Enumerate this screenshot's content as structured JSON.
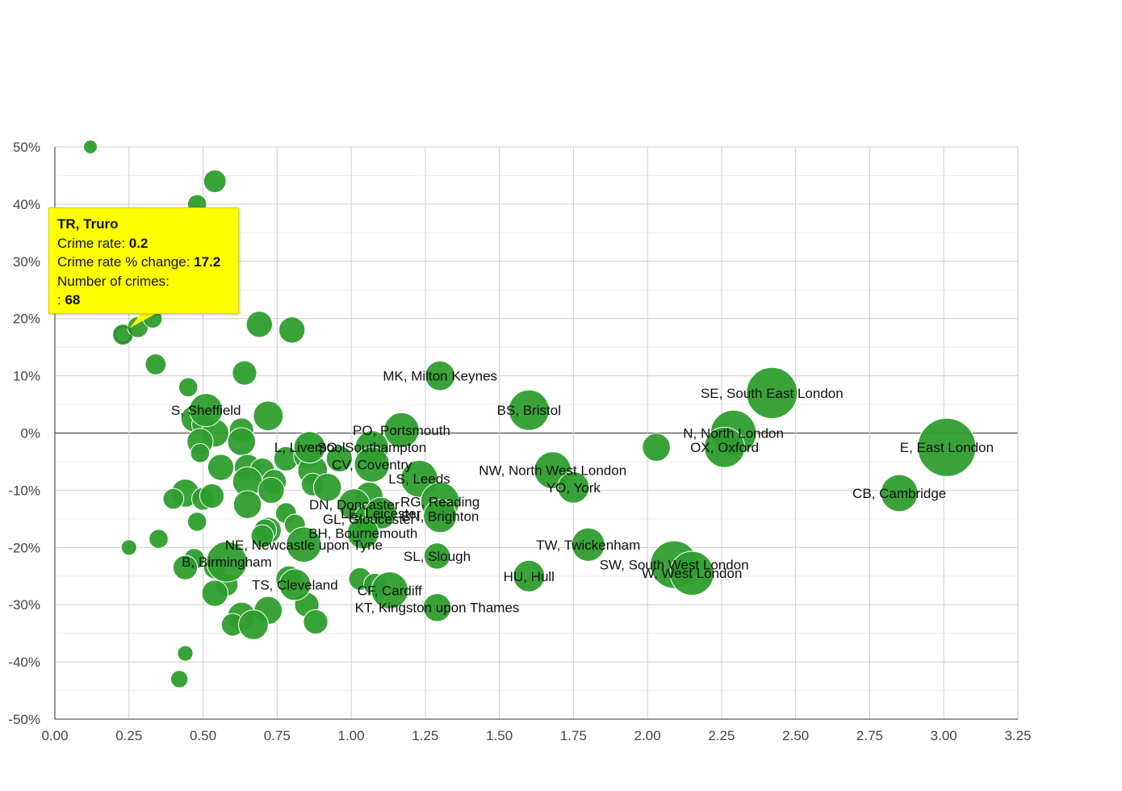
{
  "chart_data": {
    "type": "scatter",
    "title": "",
    "xlabel": "",
    "ylabel": "",
    "xlim": [
      0,
      3.25
    ],
    "ylim": [
      -50,
      50
    ],
    "x_ticks": [
      "0.00",
      "0.25",
      "0.50",
      "0.75",
      "1.00",
      "1.25",
      "1.50",
      "1.75",
      "2.00",
      "2.25",
      "2.50",
      "2.75",
      "3.00",
      "3.25"
    ],
    "y_ticks": [
      "50%",
      "40%",
      "30%",
      "20%",
      "10%",
      "0%",
      "-10%",
      "-20%",
      "-30%",
      "-40%",
      "-50%"
    ],
    "grid": true,
    "bubble_color": "#2e9e2e",
    "labeled_points": [
      {
        "label": "E, East London",
        "x": 3.01,
        "y": -2.5,
        "size": 3.0
      },
      {
        "label": "SE, South East London",
        "x": 2.42,
        "y": 7,
        "size": 2.6
      },
      {
        "label": "N, North London",
        "x": 2.29,
        "y": 0,
        "size": 2.3
      },
      {
        "label": "OX, Oxford",
        "x": 2.26,
        "y": -2.5,
        "size": 2.0
      },
      {
        "label": "CB, Cambridge",
        "x": 2.85,
        "y": -10.5,
        "size": 1.8
      },
      {
        "label": "SW, South West London",
        "x": 2.09,
        "y": -23,
        "size": 2.4
      },
      {
        "label": "W, West London",
        "x": 2.15,
        "y": -24.5,
        "size": 2.2
      },
      {
        "label": "MK, Milton Keynes",
        "x": 1.3,
        "y": 10,
        "size": 1.4
      },
      {
        "label": "BS, Bristol",
        "x": 1.6,
        "y": 4,
        "size": 2.0
      },
      {
        "label": "PO, Portsmouth",
        "x": 1.17,
        "y": 0.5,
        "size": 1.7
      },
      {
        "label": "NW, North West London",
        "x": 1.68,
        "y": -6.5,
        "size": 1.8
      },
      {
        "label": "YO, York",
        "x": 1.75,
        "y": -9.5,
        "size": 1.5
      },
      {
        "label": "LS, Leeds",
        "x": 1.23,
        "y": -8,
        "size": 1.8
      },
      {
        "label": "RG, Reading",
        "x": 1.3,
        "y": -12,
        "size": 1.9
      },
      {
        "label": "TW, Twickenham",
        "x": 1.8,
        "y": -19.5,
        "size": 1.6
      },
      {
        "label": "SL, Slough",
        "x": 1.29,
        "y": -21.5,
        "size": 1.2
      },
      {
        "label": "HU, Hull",
        "x": 1.6,
        "y": -25,
        "size": 1.5
      },
      {
        "label": "CF, Cardiff",
        "x": 1.13,
        "y": -27.5,
        "size": 1.8
      },
      {
        "label": "KT, Kingston upon Thames",
        "x": 1.29,
        "y": -30.5,
        "size": 1.3
      },
      {
        "label": "S, Sheffield",
        "x": 0.51,
        "y": 4,
        "size": 1.6
      },
      {
        "label": "SO, Southampton",
        "x": 1.07,
        "y": -2.5,
        "size": 1.6
      },
      {
        "label": "L, Liverpool",
        "x": 0.86,
        "y": -2.5,
        "size": 1.5
      },
      {
        "label": "CV, Coventry",
        "x": 1.07,
        "y": -5.5,
        "size": 1.7
      },
      {
        "label": "DN, Doncaster",
        "x": 1.01,
        "y": -12.5,
        "size": 1.5
      },
      {
        "label": "GL, Gloucester",
        "x": 1.06,
        "y": -15,
        "size": 1.4
      },
      {
        "label": "BN, Brighton",
        "x": 1.3,
        "y": -14.5,
        "size": 1.6
      },
      {
        "label": "LE, Leicester",
        "x": 1.1,
        "y": -14,
        "size": 1.5
      },
      {
        "label": "BH, Bournemouth",
        "x": 1.04,
        "y": -17.5,
        "size": 1.5
      },
      {
        "label": "NE, Newcastle upon Tyne",
        "x": 0.84,
        "y": -19.5,
        "size": 1.7
      },
      {
        "label": "B, Birmingham",
        "x": 0.58,
        "y": -22.5,
        "size": 2.0
      },
      {
        "label": "TS, Cleveland",
        "x": 0.81,
        "y": -26.5,
        "size": 1.5
      }
    ],
    "points": [
      {
        "x": 0.23,
        "y": 17.2,
        "size": 0.9
      },
      {
        "x": 0.12,
        "y": 50,
        "size": 0.5
      },
      {
        "x": 0.54,
        "y": 44,
        "size": 1.0
      },
      {
        "x": 0.48,
        "y": 40,
        "size": 0.8
      },
      {
        "x": 0.28,
        "y": 18.5,
        "size": 0.9
      },
      {
        "x": 0.33,
        "y": 20,
        "size": 0.8
      },
      {
        "x": 0.69,
        "y": 19,
        "size": 1.2
      },
      {
        "x": 0.8,
        "y": 18,
        "size": 1.2
      },
      {
        "x": 0.34,
        "y": 12,
        "size": 0.9
      },
      {
        "x": 0.64,
        "y": 10.5,
        "size": 1.1
      },
      {
        "x": 0.45,
        "y": 8,
        "size": 0.8
      },
      {
        "x": 0.72,
        "y": 3,
        "size": 1.4
      },
      {
        "x": 0.47,
        "y": 2.5,
        "size": 1.2
      },
      {
        "x": 0.5,
        "y": 1.5,
        "size": 1.0
      },
      {
        "x": 0.54,
        "y": 0,
        "size": 1.3
      },
      {
        "x": 0.63,
        "y": 0.5,
        "size": 1.1
      },
      {
        "x": 0.63,
        "y": -1.5,
        "size": 1.3
      },
      {
        "x": 0.49,
        "y": -1.5,
        "size": 1.2
      },
      {
        "x": 0.49,
        "y": -3.5,
        "size": 0.8
      },
      {
        "x": 0.56,
        "y": -6,
        "size": 1.2
      },
      {
        "x": 0.65,
        "y": -6,
        "size": 1.2
      },
      {
        "x": 0.7,
        "y": -6.5,
        "size": 1.1
      },
      {
        "x": 0.74,
        "y": -8.5,
        "size": 1.1
      },
      {
        "x": 0.65,
        "y": -8.5,
        "size": 1.4
      },
      {
        "x": 0.73,
        "y": -10,
        "size": 1.2
      },
      {
        "x": 0.78,
        "y": -4.5,
        "size": 1.1
      },
      {
        "x": 0.85,
        "y": -4,
        "size": 1.2
      },
      {
        "x": 0.87,
        "y": -6.5,
        "size": 1.4
      },
      {
        "x": 0.87,
        "y": -9,
        "size": 1.0
      },
      {
        "x": 0.92,
        "y": -9.5,
        "size": 1.3
      },
      {
        "x": 0.96,
        "y": -4.5,
        "size": 1.2
      },
      {
        "x": 1.06,
        "y": -11,
        "size": 1.3
      },
      {
        "x": 0.44,
        "y": -10.5,
        "size": 1.3
      },
      {
        "x": 0.4,
        "y": -11.5,
        "size": 0.9
      },
      {
        "x": 0.5,
        "y": -11.5,
        "size": 1.0
      },
      {
        "x": 0.53,
        "y": -11,
        "size": 1.1
      },
      {
        "x": 0.65,
        "y": -12.5,
        "size": 1.3
      },
      {
        "x": 0.78,
        "y": -14,
        "size": 0.9
      },
      {
        "x": 0.48,
        "y": -15.5,
        "size": 0.8
      },
      {
        "x": 0.81,
        "y": -16,
        "size": 0.9
      },
      {
        "x": 0.72,
        "y": -17,
        "size": 1.2
      },
      {
        "x": 0.71,
        "y": -17,
        "size": 1.0
      },
      {
        "x": 0.7,
        "y": -18,
        "size": 1.0
      },
      {
        "x": 0.35,
        "y": -18.5,
        "size": 0.8
      },
      {
        "x": 0.25,
        "y": -20,
        "size": 0.6
      },
      {
        "x": 0.47,
        "y": -22,
        "size": 0.9
      },
      {
        "x": 0.44,
        "y": -23.5,
        "size": 1.1
      },
      {
        "x": 0.54,
        "y": -23.5,
        "size": 1.0
      },
      {
        "x": 0.58,
        "y": -26.5,
        "size": 1.0
      },
      {
        "x": 0.54,
        "y": -28,
        "size": 1.2
      },
      {
        "x": 0.79,
        "y": -25.5,
        "size": 1.2
      },
      {
        "x": 0.85,
        "y": -30,
        "size": 1.1
      },
      {
        "x": 0.72,
        "y": -31,
        "size": 1.3
      },
      {
        "x": 0.63,
        "y": -32,
        "size": 1.3
      },
      {
        "x": 0.6,
        "y": -33.5,
        "size": 1.0
      },
      {
        "x": 0.67,
        "y": -33.5,
        "size": 1.4
      },
      {
        "x": 0.88,
        "y": -33,
        "size": 1.1
      },
      {
        "x": 1.03,
        "y": -25.5,
        "size": 1.0
      },
      {
        "x": 1.08,
        "y": -26.5,
        "size": 1.0
      },
      {
        "x": 2.03,
        "y": -2.5,
        "size": 1.3
      },
      {
        "x": 0.44,
        "y": -38.5,
        "size": 0.6
      },
      {
        "x": 0.42,
        "y": -43,
        "size": 0.7
      }
    ]
  },
  "tooltip": {
    "title": "TR, Truro",
    "rate_label": "Crime rate: ",
    "rate_value": "0.2",
    "change_label": "Crime rate % change: ",
    "change_value": "17.2",
    "count_label": "Number of crimes:",
    "count_prefix": ": ",
    "count_value": "68",
    "point_x": 0.23,
    "point_y": 17.2
  }
}
